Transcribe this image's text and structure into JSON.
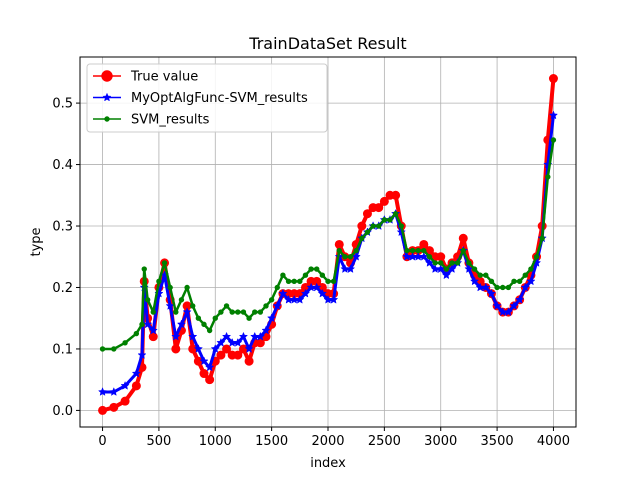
{
  "chart_data": {
    "type": "line",
    "title": "TrainDataSet Result",
    "xlabel": "index",
    "ylabel": "type",
    "xlim": [
      -200,
      4200
    ],
    "ylim": [
      -0.027,
      0.575
    ],
    "grid": true,
    "legend_position": "top-left",
    "x_ticks": [
      0,
      500,
      1000,
      1500,
      2000,
      2500,
      3000,
      3500,
      4000
    ],
    "y_ticks": [
      0.0,
      0.1,
      0.2,
      0.3,
      0.4,
      0.5
    ],
    "x_tick_labels": [
      "0",
      "500",
      "1000",
      "1500",
      "2000",
      "2500",
      "3000",
      "3500",
      "4000"
    ],
    "y_tick_labels": [
      "0.0",
      "0.1",
      "0.2",
      "0.3",
      "0.4",
      "0.5"
    ],
    "series": [
      {
        "name": "True value",
        "color": "#ff0000",
        "marker": "circle",
        "x": [
          0,
          100,
          200,
          300,
          350,
          370,
          400,
          450,
          500,
          550,
          600,
          650,
          700,
          750,
          800,
          850,
          900,
          950,
          1000,
          1050,
          1100,
          1150,
          1200,
          1250,
          1300,
          1350,
          1400,
          1450,
          1500,
          1550,
          1600,
          1650,
          1700,
          1750,
          1800,
          1850,
          1900,
          1950,
          2000,
          2050,
          2100,
          2150,
          2200,
          2250,
          2300,
          2350,
          2400,
          2450,
          2500,
          2550,
          2600,
          2650,
          2700,
          2750,
          2800,
          2850,
          2900,
          2950,
          3000,
          3050,
          3100,
          3150,
          3200,
          3250,
          3300,
          3350,
          3400,
          3450,
          3500,
          3550,
          3600,
          3650,
          3700,
          3750,
          3800,
          3850,
          3900,
          3950,
          4000
        ],
        "y": [
          0.0,
          0.005,
          0.015,
          0.04,
          0.07,
          0.21,
          0.15,
          0.12,
          0.2,
          0.24,
          0.18,
          0.1,
          0.13,
          0.17,
          0.1,
          0.08,
          0.06,
          0.05,
          0.08,
          0.09,
          0.1,
          0.09,
          0.09,
          0.1,
          0.08,
          0.11,
          0.11,
          0.12,
          0.14,
          0.17,
          0.19,
          0.19,
          0.19,
          0.19,
          0.2,
          0.21,
          0.21,
          0.2,
          0.19,
          0.19,
          0.27,
          0.25,
          0.24,
          0.27,
          0.3,
          0.32,
          0.33,
          0.33,
          0.34,
          0.35,
          0.35,
          0.3,
          0.25,
          0.26,
          0.26,
          0.27,
          0.26,
          0.25,
          0.25,
          0.23,
          0.24,
          0.25,
          0.28,
          0.24,
          0.22,
          0.21,
          0.2,
          0.19,
          0.17,
          0.16,
          0.16,
          0.17,
          0.18,
          0.2,
          0.22,
          0.25,
          0.3,
          0.44,
          0.54
        ]
      },
      {
        "name": "MyOptAlgFunc-SVM_results",
        "color": "#0000ff",
        "marker": "star",
        "x": [
          0,
          100,
          200,
          300,
          350,
          370,
          400,
          450,
          500,
          550,
          600,
          650,
          700,
          750,
          800,
          850,
          900,
          950,
          1000,
          1050,
          1100,
          1150,
          1200,
          1250,
          1300,
          1350,
          1400,
          1450,
          1500,
          1550,
          1600,
          1650,
          1700,
          1750,
          1800,
          1850,
          1900,
          1950,
          2000,
          2050,
          2100,
          2150,
          2200,
          2250,
          2300,
          2350,
          2400,
          2450,
          2500,
          2550,
          2600,
          2650,
          2700,
          2750,
          2800,
          2850,
          2900,
          2950,
          3000,
          3050,
          3100,
          3150,
          3200,
          3250,
          3300,
          3350,
          3400,
          3450,
          3500,
          3550,
          3600,
          3650,
          3700,
          3750,
          3800,
          3850,
          3900,
          3950,
          4000
        ],
        "y": [
          0.03,
          0.03,
          0.04,
          0.06,
          0.09,
          0.2,
          0.14,
          0.13,
          0.19,
          0.22,
          0.17,
          0.12,
          0.14,
          0.16,
          0.12,
          0.1,
          0.08,
          0.07,
          0.1,
          0.11,
          0.12,
          0.11,
          0.11,
          0.12,
          0.1,
          0.12,
          0.12,
          0.13,
          0.15,
          0.17,
          0.19,
          0.18,
          0.18,
          0.18,
          0.19,
          0.2,
          0.2,
          0.19,
          0.18,
          0.18,
          0.25,
          0.23,
          0.23,
          0.25,
          0.28,
          0.29,
          0.3,
          0.3,
          0.31,
          0.31,
          0.32,
          0.29,
          0.25,
          0.25,
          0.25,
          0.25,
          0.24,
          0.23,
          0.23,
          0.22,
          0.23,
          0.24,
          0.26,
          0.23,
          0.21,
          0.2,
          0.2,
          0.19,
          0.17,
          0.16,
          0.16,
          0.17,
          0.18,
          0.2,
          0.21,
          0.24,
          0.28,
          0.4,
          0.48
        ]
      },
      {
        "name": "SVM_results",
        "color": "#008000",
        "marker": "point",
        "x": [
          0,
          100,
          200,
          300,
          350,
          370,
          400,
          450,
          500,
          550,
          600,
          650,
          700,
          750,
          800,
          850,
          900,
          950,
          1000,
          1050,
          1100,
          1150,
          1200,
          1250,
          1300,
          1350,
          1400,
          1450,
          1500,
          1550,
          1600,
          1650,
          1700,
          1750,
          1800,
          1850,
          1900,
          1950,
          2000,
          2050,
          2100,
          2150,
          2200,
          2250,
          2300,
          2350,
          2400,
          2450,
          2500,
          2550,
          2600,
          2650,
          2700,
          2750,
          2800,
          2850,
          2900,
          2950,
          3000,
          3050,
          3100,
          3150,
          3200,
          3250,
          3300,
          3350,
          3400,
          3450,
          3500,
          3550,
          3600,
          3650,
          3700,
          3750,
          3800,
          3850,
          3900,
          3950,
          4000
        ],
        "y": [
          0.1,
          0.1,
          0.11,
          0.125,
          0.14,
          0.23,
          0.18,
          0.16,
          0.21,
          0.24,
          0.2,
          0.16,
          0.18,
          0.2,
          0.17,
          0.15,
          0.14,
          0.13,
          0.15,
          0.16,
          0.17,
          0.16,
          0.16,
          0.16,
          0.15,
          0.16,
          0.16,
          0.17,
          0.18,
          0.2,
          0.22,
          0.21,
          0.21,
          0.21,
          0.22,
          0.23,
          0.23,
          0.22,
          0.21,
          0.21,
          0.26,
          0.25,
          0.25,
          0.26,
          0.28,
          0.29,
          0.3,
          0.3,
          0.31,
          0.31,
          0.32,
          0.3,
          0.26,
          0.26,
          0.26,
          0.26,
          0.25,
          0.24,
          0.24,
          0.23,
          0.24,
          0.24,
          0.26,
          0.24,
          0.23,
          0.22,
          0.22,
          0.21,
          0.2,
          0.2,
          0.2,
          0.21,
          0.21,
          0.22,
          0.23,
          0.25,
          0.28,
          0.38,
          0.44
        ]
      }
    ]
  }
}
